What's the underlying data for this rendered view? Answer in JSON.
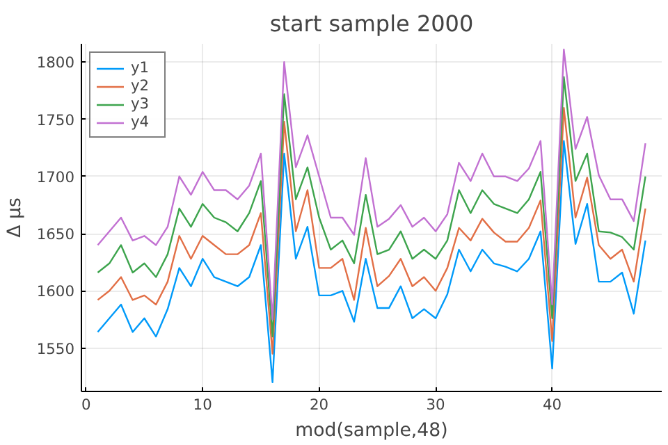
{
  "chart_data": {
    "type": "line",
    "title": "start sample 2000",
    "xlabel": "mod(sample,48)",
    "ylabel": "Δ µs",
    "x": [
      1,
      2,
      3,
      4,
      5,
      6,
      7,
      8,
      9,
      10,
      11,
      12,
      13,
      14,
      15,
      16,
      17,
      18,
      19,
      20,
      21,
      22,
      23,
      24,
      25,
      26,
      27,
      28,
      29,
      30,
      31,
      32,
      33,
      34,
      35,
      36,
      37,
      38,
      39,
      40,
      41,
      42,
      43,
      44,
      45,
      46,
      47,
      48
    ],
    "series": [
      {
        "name": "y1",
        "color": "#009af9",
        "values": [
          1564,
          1576,
          1588,
          1564,
          1576,
          1560,
          1584,
          1620,
          1604,
          1628,
          1612,
          1608,
          1604,
          1612,
          1640,
          1520,
          1720,
          1628,
          1656,
          1596,
          1596,
          1600,
          1573,
          1628,
          1585,
          1585,
          1604,
          1576,
          1584,
          1576,
          1597,
          1636,
          1617,
          1636,
          1624,
          1621,
          1617,
          1628,
          1652,
          1532,
          1731,
          1641,
          1676,
          1608,
          1608,
          1616,
          1580,
          1644
        ]
      },
      {
        "name": "y2",
        "color": "#e26f46",
        "values": [
          1592,
          1600,
          1612,
          1592,
          1596,
          1588,
          1608,
          1648,
          1628,
          1648,
          1640,
          1632,
          1632,
          1640,
          1668,
          1545,
          1748,
          1652,
          1688,
          1620,
          1620,
          1628,
          1592,
          1655,
          1604,
          1613,
          1628,
          1604,
          1612,
          1600,
          1620,
          1655,
          1644,
          1663,
          1651,
          1643,
          1643,
          1655,
          1679,
          1556,
          1760,
          1664,
          1699,
          1640,
          1628,
          1636,
          1608,
          1672
        ]
      },
      {
        "name": "y3",
        "color": "#3da44d",
        "values": [
          1616,
          1624,
          1640,
          1616,
          1624,
          1612,
          1632,
          1672,
          1656,
          1676,
          1664,
          1660,
          1652,
          1668,
          1696,
          1560,
          1772,
          1680,
          1708,
          1664,
          1636,
          1644,
          1624,
          1684,
          1632,
          1636,
          1652,
          1628,
          1636,
          1628,
          1644,
          1688,
          1668,
          1688,
          1676,
          1672,
          1668,
          1680,
          1704,
          1576,
          1787,
          1696,
          1720,
          1652,
          1651,
          1647,
          1636,
          1700
        ]
      },
      {
        "name": "y4",
        "color": "#c271d2",
        "values": [
          1640,
          1652,
          1664,
          1644,
          1648,
          1640,
          1656,
          1700,
          1684,
          1704,
          1688,
          1688,
          1680,
          1692,
          1720,
          1575,
          1800,
          1708,
          1736,
          1700,
          1664,
          1664,
          1649,
          1716,
          1656,
          1663,
          1675,
          1656,
          1664,
          1652,
          1667,
          1712,
          1696,
          1720,
          1700,
          1700,
          1696,
          1707,
          1731,
          1588,
          1811,
          1724,
          1752,
          1701,
          1680,
          1680,
          1661,
          1729
        ]
      }
    ],
    "xlim": [
      -0.4,
      49.4
    ],
    "ylim": [
      1512,
      1816
    ],
    "xticks": [
      0,
      10,
      20,
      30,
      40
    ],
    "yticks": [
      1550,
      1600,
      1650,
      1700,
      1750,
      1800
    ],
    "grid": true,
    "legend": "top left",
    "marker": "none",
    "line_style": "solid"
  }
}
